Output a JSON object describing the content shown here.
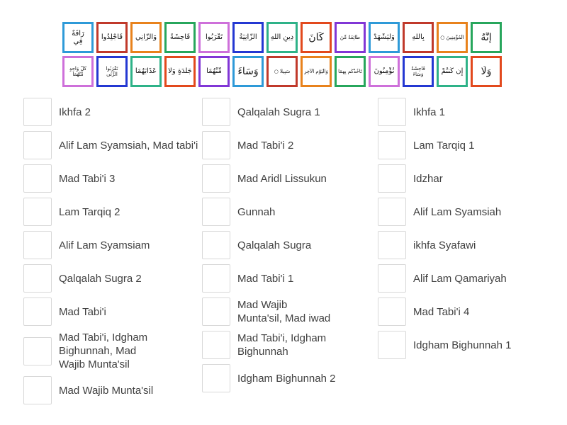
{
  "palette": [
    "#2E9AD8",
    "#C0392B",
    "#E8821C",
    "#27A65C",
    "#CE70DA",
    "#2438D2",
    "#2EB288",
    "#E2491D",
    "#8136D6"
  ],
  "tile_rows": [
    [
      {
        "text": "رَأْفَةٌ فِي",
        "color": 0,
        "size": "md"
      },
      {
        "text": "فَاجْلِدُوا",
        "color": 1,
        "size": "md"
      },
      {
        "text": "وَالزَّانِي",
        "color": 2,
        "size": "md"
      },
      {
        "text": "فَاحِشَةً",
        "color": 3,
        "size": "md"
      },
      {
        "text": "تَقْرَبُوا",
        "color": 4,
        "size": "md"
      },
      {
        "text": "الزَّانِيَةُ",
        "color": 5,
        "size": "md"
      },
      {
        "text": "دِينِ اللَّهِ",
        "color": 6,
        "size": "md"
      },
      {
        "text": "كَانَ",
        "color": 7,
        "size": "lg"
      },
      {
        "text": "طَائِفَةٌ مِّنَ",
        "color": 8,
        "size": "sm"
      },
      {
        "text": "وَلْيَشْهَدْ",
        "color": 0,
        "size": "md"
      },
      {
        "text": "بِاللَّهِ",
        "color": 1,
        "size": "md"
      },
      {
        "text": "الْمُؤْمِنِينَ ○",
        "color": 2,
        "size": "sm"
      },
      {
        "text": "إِنَّهُ",
        "color": 3,
        "size": "lg"
      }
    ],
    [
      {
        "text": "كُلَّ وَاحِدٍ مِّنْهُمَا",
        "color": 4,
        "size": "sm"
      },
      {
        "text": "تَقْرَبُوا الزِّنَى",
        "color": 5,
        "size": "sm"
      },
      {
        "text": "عَذَابَهُمَا",
        "color": 6,
        "size": "md"
      },
      {
        "text": "جَلْدَةٍ وَلَا",
        "color": 7,
        "size": "md"
      },
      {
        "text": "مِّنْهُمَا",
        "color": 8,
        "size": "md"
      },
      {
        "text": "وَسَاءَ",
        "color": 0,
        "size": "lg"
      },
      {
        "text": "سَبِيلًا ○",
        "color": 1,
        "size": "sm"
      },
      {
        "text": "وَالْيَوْمِ الْآخِرِ",
        "color": 2,
        "size": "sm"
      },
      {
        "text": "تَأْخُذْكُم بِهِمَا",
        "color": 3,
        "size": "sm"
      },
      {
        "text": "تُؤْمِنُونَ",
        "color": 4,
        "size": "md"
      },
      {
        "text": "فَاحِشَةً وَسَاءَ",
        "color": 5,
        "size": "sm"
      },
      {
        "text": "إِن كُنتُمْ",
        "color": 6,
        "size": "md"
      },
      {
        "text": "وَلَا",
        "color": 7,
        "size": "lg"
      }
    ]
  ],
  "answer_columns": [
    {
      "items": [
        {
          "label": "Ikhfa 2"
        },
        {
          "label": "Alif Lam Syamsiah, Mad tabi'i"
        },
        {
          "label": "Mad Tabi'i 3"
        },
        {
          "label": "Lam Tarqiq 2"
        },
        {
          "label": "Alif Lam Syamsiam"
        },
        {
          "label": "Qalqalah Sugra 2"
        },
        {
          "label": "Mad Tabi'i"
        },
        {
          "label": "Mad Tabi'i, Idgham\nBighunnah, Mad\nWajib Munta'sil"
        },
        {
          "label": "Mad Wajib Munta'sil"
        }
      ]
    },
    {
      "items": [
        {
          "label": "Qalqalah Sugra 1"
        },
        {
          "label": "Mad Tabi'i 2"
        },
        {
          "label": "Mad Aridl Lissukun"
        },
        {
          "label": "Gunnah"
        },
        {
          "label": "Qalqalah Sugra"
        },
        {
          "label": "Mad Tabi'i 1"
        },
        {
          "label": "Mad Wajib\nMunta'sil, Mad iwad"
        },
        {
          "label": "Mad Tabi'i, Idgham\nBighunnah"
        },
        {
          "label": "Idgham Bighunnah 2"
        }
      ]
    },
    {
      "items": [
        {
          "label": "Ikhfa 1"
        },
        {
          "label": "Lam Tarqiq 1"
        },
        {
          "label": "Idzhar"
        },
        {
          "label": "Alif Lam Syamsiah"
        },
        {
          "label": "ikhfa Syafawi"
        },
        {
          "label": "Alif Lam Qamariyah"
        },
        {
          "label": "Mad Tabi'i 4"
        },
        {
          "label": "Idgham Bighunnah 1"
        }
      ]
    }
  ]
}
